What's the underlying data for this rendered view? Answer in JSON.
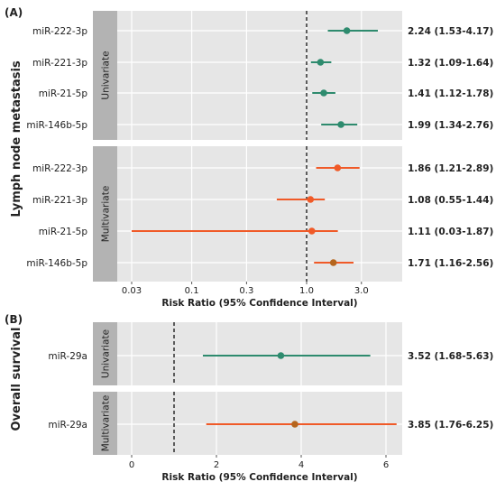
{
  "chart_data": [
    {
      "type": "forest",
      "panel_label": "(A)",
      "y_title": "Lymph node metastasis",
      "xlabel": "Risk Ratio (95% Confidence Interval)",
      "x_scale": "log",
      "xlim": [
        0.02,
        8.0
      ],
      "x_ticks": [
        {
          "value": 0.03,
          "label": "0.03"
        },
        {
          "value": 0.1,
          "label": "0.1"
        },
        {
          "value": 0.3,
          "label": "0.3"
        },
        {
          "value": 1.0,
          "label": "1.0"
        },
        {
          "value": 3.0,
          "label": "3.0"
        }
      ],
      "reference_line": 1.0,
      "grid": true,
      "groups": [
        {
          "label": "Univariate",
          "rows": [
            {
              "name": "miR-222-3p",
              "estimate": 2.24,
              "lower": 1.53,
              "upper": 4.17,
              "ci_text": "2.24 (1.53-4.17)",
              "line_color": "#2e8b6e",
              "dot_color": "#2e8b6e"
            },
            {
              "name": "miR-221-3p",
              "estimate": 1.32,
              "lower": 1.09,
              "upper": 1.64,
              "ci_text": "1.32 (1.09-1.64)",
              "line_color": "#2e8b6e",
              "dot_color": "#2e8b6e"
            },
            {
              "name": "miR-21-5p",
              "estimate": 1.41,
              "lower": 1.12,
              "upper": 1.78,
              "ci_text": "1.41 (1.12-1.78)",
              "line_color": "#2e8b6e",
              "dot_color": "#2e8b6e"
            },
            {
              "name": "miR-146b-5p",
              "estimate": 1.99,
              "lower": 1.34,
              "upper": 2.76,
              "ci_text": "1.99 (1.34-2.76)",
              "line_color": "#2e8b6e",
              "dot_color": "#2e8b6e"
            }
          ]
        },
        {
          "label": "Multivariate",
          "rows": [
            {
              "name": "miR-222-3p",
              "estimate": 1.86,
              "lower": 1.21,
              "upper": 2.89,
              "ci_text": "1.86 (1.21-2.89)",
              "line_color": "#f05a28",
              "dot_color": "#f05a28"
            },
            {
              "name": "miR-221-3p",
              "estimate": 1.08,
              "lower": 0.55,
              "upper": 1.44,
              "ci_text": "1.08 (0.55-1.44)",
              "line_color": "#f05a28",
              "dot_color": "#f05a28"
            },
            {
              "name": "miR-21-5p",
              "estimate": 1.11,
              "lower": 0.03,
              "upper": 1.87,
              "ci_text": "1.11 (0.03-1.87)",
              "line_color": "#f05a28",
              "dot_color": "#f05a28"
            },
            {
              "name": "miR-146b-5p",
              "estimate": 1.71,
              "lower": 1.16,
              "upper": 2.56,
              "ci_text": "1.71 (1.16-2.56)",
              "line_color": "#f05a28",
              "dot_color": "#b5651d"
            }
          ]
        }
      ]
    },
    {
      "type": "forest",
      "panel_label": "(B)",
      "y_title": "Overall survival",
      "xlabel": "Risk Ratio (95% Confidence Interval)",
      "x_scale": "linear",
      "xlim": [
        -0.6,
        6.5
      ],
      "x_ticks": [
        {
          "value": 0,
          "label": "0"
        },
        {
          "value": 2,
          "label": "2"
        },
        {
          "value": 4,
          "label": "4"
        },
        {
          "value": 6,
          "label": "6"
        }
      ],
      "reference_line": 1.0,
      "grid": true,
      "groups": [
        {
          "label": "Univariate",
          "rows": [
            {
              "name": "miR-29a",
              "estimate": 3.52,
              "lower": 1.68,
              "upper": 5.63,
              "ci_text": "3.52 (1.68-5.63)",
              "line_color": "#2e8b6e",
              "dot_color": "#2e8b6e"
            }
          ]
        },
        {
          "label": "Multivariate",
          "rows": [
            {
              "name": "miR-29a",
              "estimate": 3.85,
              "lower": 1.76,
              "upper": 6.25,
              "ci_text": "3.85 (1.76-6.25)",
              "line_color": "#f05a28",
              "dot_color": "#b5651d"
            }
          ]
        }
      ]
    }
  ],
  "colors": {
    "panel_bg": "#e6e6e6",
    "strip_bg": "#b3b3b3",
    "grid": "#ffffff",
    "univariate": "#2e8b6e",
    "multivariate": "#f05a28",
    "multivariate_dot_alt": "#b5651d"
  }
}
